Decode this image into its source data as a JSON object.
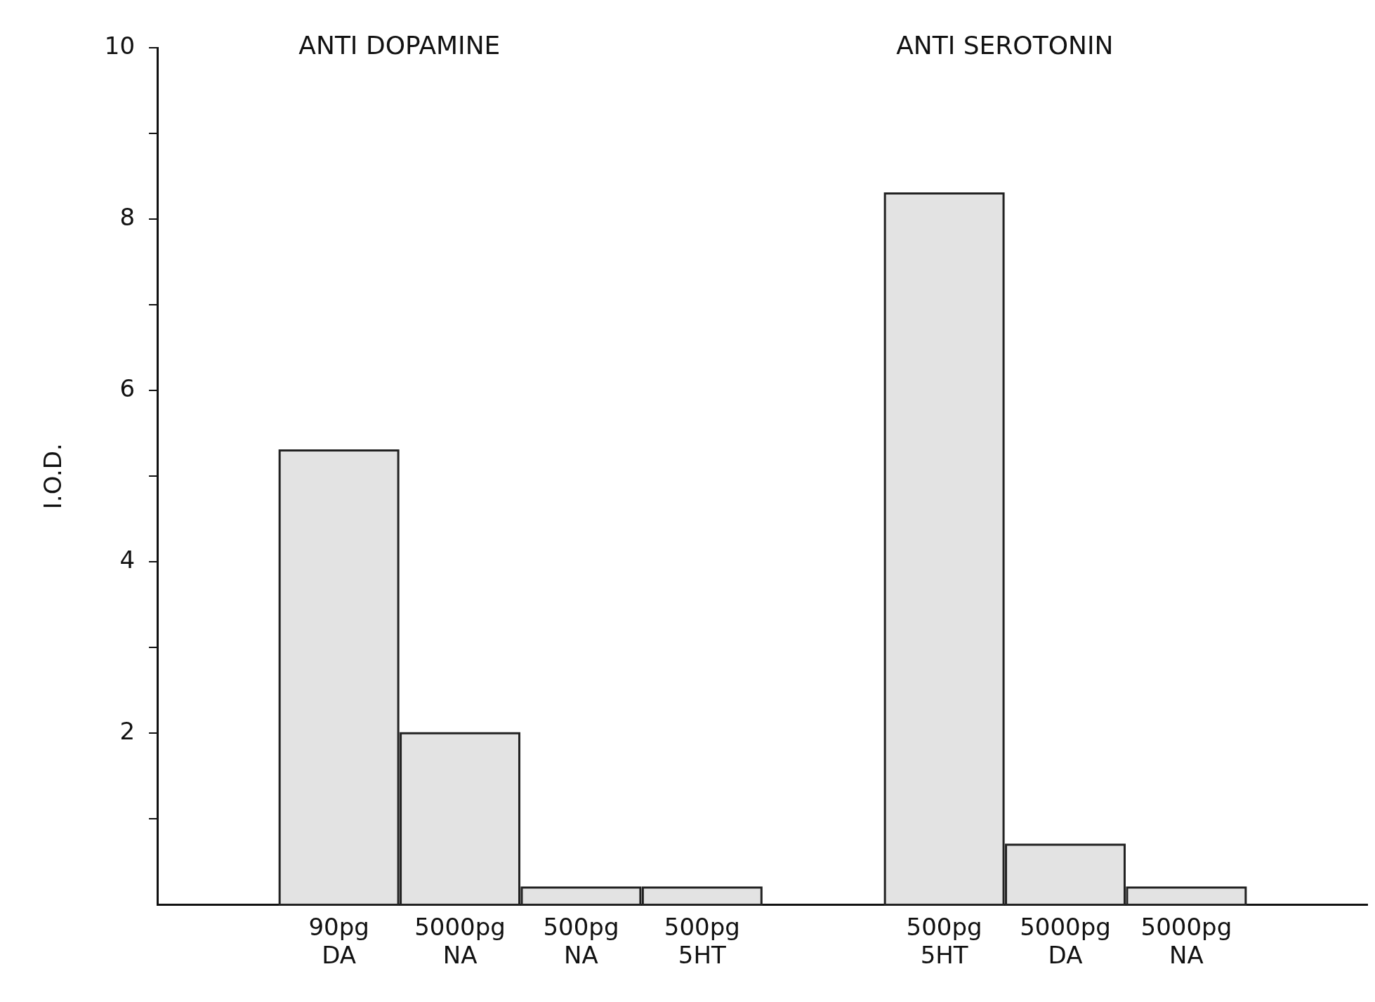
{
  "chart_data": {
    "type": "bar",
    "ylabel": "I.O.D.",
    "categories": [
      null,
      "90pg DA",
      "5000pg NA",
      "500pg NA",
      "500pg 5HT",
      null,
      "500pg 5HT",
      "5000pg DA",
      "5000pg NA",
      null
    ],
    "values": [
      null,
      5.3,
      2.0,
      0.2,
      0.2,
      null,
      8.3,
      0.7,
      0.2,
      null
    ],
    "color": "#e3e3e3",
    "ylim": [
      0,
      10
    ],
    "yticks": [
      {
        "value": 1,
        "label": null
      },
      2,
      {
        "value": 3,
        "label": null
      },
      4,
      {
        "value": 5,
        "label": null
      },
      6,
      {
        "value": 7,
        "label": null
      },
      8,
      {
        "value": 9,
        "label": null
      },
      10
    ],
    "annotations": [
      "ANTI DOPAMINE",
      "ANTI SEROTONIN"
    ],
    "grid": false,
    "legend": false
  }
}
